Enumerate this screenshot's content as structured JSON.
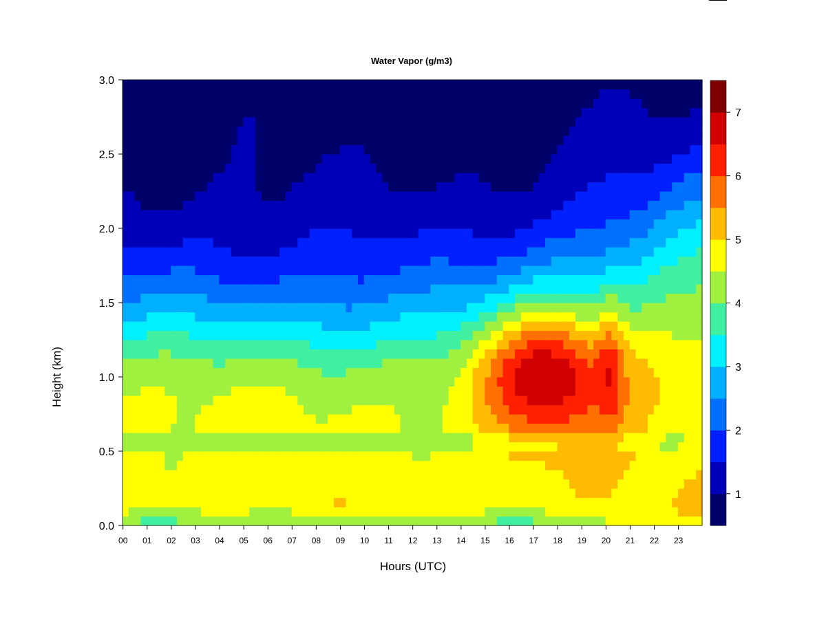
{
  "chart_data": {
    "type": "heatmap",
    "title": "Water Vapor (g/m3)",
    "xlabel": "Hours (UTC)",
    "ylabel": "Height (km)",
    "xlim": [
      0,
      24
    ],
    "ylim": [
      0,
      3
    ],
    "x_ticks": [
      "00",
      "01",
      "02",
      "03",
      "04",
      "05",
      "06",
      "07",
      "08",
      "09",
      "10",
      "11",
      "12",
      "13",
      "14",
      "15",
      "16",
      "17",
      "18",
      "19",
      "20",
      "21",
      "22",
      "23"
    ],
    "y_ticks": [
      "0.0",
      "0.5",
      "1.0",
      "1.5",
      "2.0",
      "2.5",
      "3.0"
    ],
    "colorbar": {
      "levels": [
        0.5,
        1.0,
        1.5,
        2.0,
        2.5,
        3.0,
        3.5,
        4.0,
        4.5,
        5.0,
        5.5,
        6.0,
        6.5,
        7.0,
        7.5
      ],
      "colors": [
        "#00006b",
        "#0000b8",
        "#0020ff",
        "#0070ff",
        "#00b0ff",
        "#00f0ff",
        "#40f0a0",
        "#a0f040",
        "#ffff00",
        "#ffbb00",
        "#ff7000",
        "#ff2000",
        "#d00000",
        "#800000"
      ],
      "tick_labels": [
        "1",
        "2",
        "3",
        "4",
        "5",
        "6",
        "7"
      ],
      "tick_values": [
        1,
        2,
        3,
        4,
        5,
        6,
        7
      ]
    },
    "grid": false,
    "legend": "colorbar-right"
  }
}
